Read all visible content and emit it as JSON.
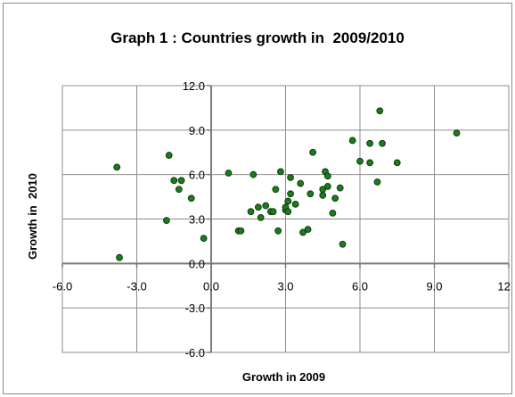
{
  "chart_data": {
    "type": "scatter",
    "title": "Graph 1 : Countries growth in  2009/2010",
    "xlabel": "Growth in 2009",
    "ylabel": "Growth in  2010",
    "xlim": [
      -6,
      12
    ],
    "ylim": [
      -6,
      12
    ],
    "x_ticks": [
      "-6.0",
      "-3.0",
      "0.0",
      "3.0",
      "6.0",
      "9.0",
      "12.0"
    ],
    "y_ticks": [
      "-6.0",
      "-3.0",
      "0.0",
      "3.0",
      "6.0",
      "9.0",
      "12.0"
    ],
    "grid": true,
    "legend": "none",
    "marker_color": "#1e7a1e",
    "marker_edge": "#0d3d0d",
    "points": [
      {
        "x": -3.8,
        "y": 6.5
      },
      {
        "x": -3.7,
        "y": 0.4
      },
      {
        "x": -1.7,
        "y": 7.3
      },
      {
        "x": -1.8,
        "y": 2.9
      },
      {
        "x": -1.5,
        "y": 5.6
      },
      {
        "x": -1.2,
        "y": 5.6
      },
      {
        "x": -1.3,
        "y": 5.0
      },
      {
        "x": -0.8,
        "y": 4.4
      },
      {
        "x": -0.3,
        "y": 1.7
      },
      {
        "x": 0.7,
        "y": 6.1
      },
      {
        "x": 1.1,
        "y": 2.2
      },
      {
        "x": 1.2,
        "y": 2.2
      },
      {
        "x": 1.6,
        "y": 3.5
      },
      {
        "x": 1.7,
        "y": 6.0
      },
      {
        "x": 1.9,
        "y": 3.8
      },
      {
        "x": 2.0,
        "y": 3.1
      },
      {
        "x": 2.2,
        "y": 3.9
      },
      {
        "x": 2.4,
        "y": 3.5
      },
      {
        "x": 2.5,
        "y": 3.5
      },
      {
        "x": 2.6,
        "y": 5.0
      },
      {
        "x": 2.7,
        "y": 2.2
      },
      {
        "x": 2.8,
        "y": 6.2
      },
      {
        "x": 3.0,
        "y": 3.6
      },
      {
        "x": 3.0,
        "y": 3.8
      },
      {
        "x": 3.1,
        "y": 3.5
      },
      {
        "x": 3.1,
        "y": 4.2
      },
      {
        "x": 3.2,
        "y": 4.7
      },
      {
        "x": 3.2,
        "y": 5.8
      },
      {
        "x": 3.4,
        "y": 4.0
      },
      {
        "x": 3.6,
        "y": 5.4
      },
      {
        "x": 3.7,
        "y": 2.1
      },
      {
        "x": 3.9,
        "y": 2.3
      },
      {
        "x": 4.0,
        "y": 4.7
      },
      {
        "x": 4.1,
        "y": 7.5
      },
      {
        "x": 4.5,
        "y": 5.0
      },
      {
        "x": 4.5,
        "y": 4.6
      },
      {
        "x": 4.6,
        "y": 6.2
      },
      {
        "x": 4.7,
        "y": 5.9
      },
      {
        "x": 4.7,
        "y": 5.2
      },
      {
        "x": 4.9,
        "y": 3.4
      },
      {
        "x": 5.0,
        "y": 4.4
      },
      {
        "x": 5.2,
        "y": 5.1
      },
      {
        "x": 5.3,
        "y": 1.3
      },
      {
        "x": 5.7,
        "y": 8.3
      },
      {
        "x": 6.0,
        "y": 6.9
      },
      {
        "x": 6.4,
        "y": 8.1
      },
      {
        "x": 6.4,
        "y": 6.8
      },
      {
        "x": 6.7,
        "y": 5.5
      },
      {
        "x": 6.8,
        "y": 10.3
      },
      {
        "x": 6.9,
        "y": 8.1
      },
      {
        "x": 7.5,
        "y": 6.8
      },
      {
        "x": 9.9,
        "y": 8.8
      }
    ]
  }
}
